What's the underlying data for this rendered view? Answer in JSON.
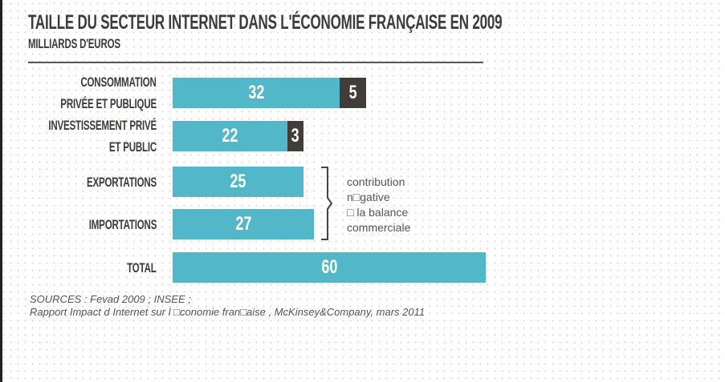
{
  "chart_data": {
    "type": "bar",
    "title": "TAILLE DU SECTEUR INTERNET DANS L'ÉCONOMIE FRANÇAISE EN 2009",
    "subtitle": "MILLIARDS D'EUROS",
    "categories": [
      {
        "lines": [
          "CONSOMMATION",
          "PRIVÉE ET PUBLIQUE"
        ],
        "values": [
          32,
          5
        ]
      },
      {
        "lines": [
          "INVESTISSEMENT PRIVÉ",
          "ET PUBLIC"
        ],
        "values": [
          22,
          3
        ]
      },
      {
        "lines": [
          "EXPORTATIONS"
        ],
        "values": [
          25
        ]
      },
      {
        "lines": [
          "IMPORTATIONS"
        ],
        "values": [
          27
        ]
      },
      {
        "lines": [
          "TOTAL"
        ],
        "values": [
          60
        ]
      }
    ],
    "series_colors": [
      "#52b7c9",
      "#433d3a"
    ],
    "annotation": [
      "contribution",
      "n□gative",
      "□ la balance",
      "commerciale"
    ],
    "sources": [
      "SOURCES : Fevad 2009 ; INSEE ;",
      "Rapport   Impact d Internet sur l □conomie fran□aise   , McKinsey&Company, mars 2011"
    ]
  }
}
